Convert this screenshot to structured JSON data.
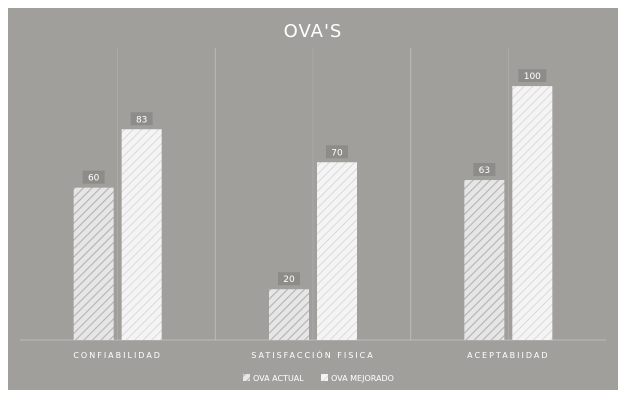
{
  "chart_data": {
    "type": "bar",
    "title": "OVA'S",
    "categories": [
      "CONFIABILIDAD",
      "SATISFACCIÓN FISICA",
      "ACEPTABIIDAD"
    ],
    "series": [
      {
        "name": "OVA ACTUAL",
        "values": [
          60,
          20,
          63
        ]
      },
      {
        "name": "OVA MEJORADO",
        "values": [
          83,
          70,
          100
        ]
      }
    ],
    "ylim": [
      0,
      115
    ],
    "grid": false,
    "legend": "bottom",
    "xlabel": "",
    "ylabel": ""
  },
  "colors": {
    "background": "#a19f9c",
    "text": "#ffffff",
    "bar_fill": "#f2f2f2",
    "hatch": "#c8c8c8",
    "label_box": "#8e8c89",
    "divider": "#bdbbb8"
  }
}
